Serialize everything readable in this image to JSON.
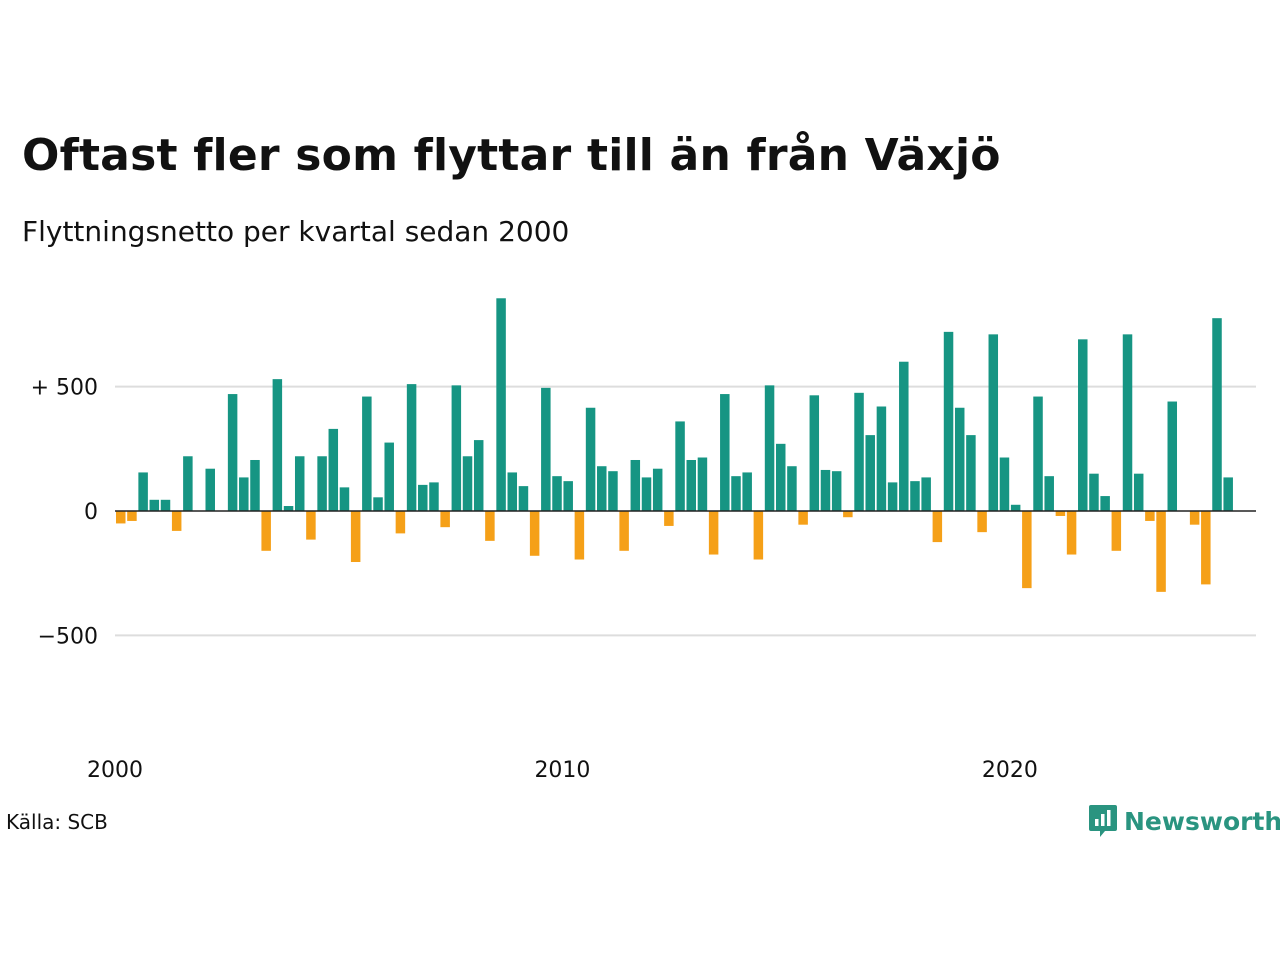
{
  "title": "Oftast fler som flyttar till än från Växjö",
  "subtitle": "Flyttningsnetto per kvartal sedan 2000",
  "source": "Källa: SCB",
  "brand": "Newsworthy",
  "colors": {
    "positive": "#169583",
    "negative": "#f5a018",
    "grid": "#dddddd",
    "brand": "#2a9480"
  },
  "chart_data": {
    "type": "bar",
    "title": "Oftast fler som flyttar till än från Växjö",
    "subtitle": "Flyttningsnetto per kvartal sedan 2000",
    "xlabel": "",
    "ylabel": "",
    "ylim": [
      -800,
      860
    ],
    "xlim": [
      2000,
      2025.5
    ],
    "y_ticks": [
      {
        "value": 500,
        "label": "+ 500"
      },
      {
        "value": 0,
        "label": "0"
      },
      {
        "value": -500,
        "label": "−500"
      }
    ],
    "x_ticks": [
      {
        "value": 2000,
        "label": "2000"
      },
      {
        "value": 2010,
        "label": "2010"
      },
      {
        "value": 2020,
        "label": "2020"
      }
    ],
    "grid": true,
    "start_year": 2000,
    "periods_per_year": 4,
    "values": [
      -50,
      -40,
      155,
      45,
      45,
      -80,
      220,
      0,
      170,
      0,
      470,
      135,
      205,
      -160,
      530,
      20,
      220,
      -115,
      220,
      330,
      95,
      -205,
      460,
      55,
      275,
      -90,
      510,
      105,
      115,
      -65,
      505,
      220,
      285,
      -120,
      855,
      155,
      100,
      -180,
      495,
      140,
      120,
      -195,
      415,
      180,
      160,
      -160,
      205,
      135,
      170,
      -60,
      360,
      205,
      215,
      -175,
      470,
      140,
      155,
      -195,
      505,
      270,
      180,
      -55,
      465,
      165,
      160,
      -25,
      475,
      305,
      420,
      115,
      600,
      120,
      135,
      -125,
      720,
      415,
      305,
      -85,
      710,
      215,
      25,
      -310,
      460,
      140,
      -20,
      -175,
      690,
      150,
      60,
      -160,
      710,
      150,
      -40,
      -325,
      440,
      0,
      -55,
      -295,
      775,
      135
    ]
  }
}
